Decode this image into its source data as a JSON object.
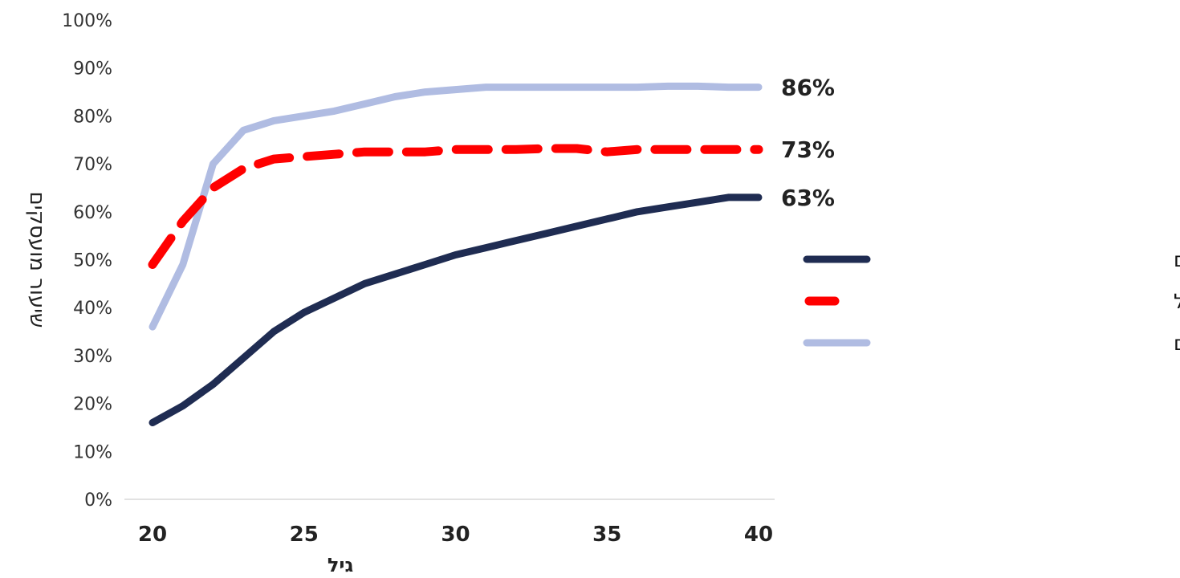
{
  "chart_data": {
    "type": "line",
    "xlabel": "גיל",
    "ylabel": "שיעור מועסקים",
    "xlim": [
      20,
      40
    ],
    "ylim": [
      0,
      100
    ],
    "x_ticks": [
      "20",
      "25",
      "30",
      "35",
      "40"
    ],
    "y_ticks": [
      "0%",
      "10%",
      "20%",
      "30%",
      "40%",
      "50%",
      "60%",
      "70%",
      "80%",
      "90%",
      "100%"
    ],
    "grid": false,
    "legend_position": "right",
    "x": [
      20,
      21,
      22,
      23,
      24,
      25,
      26,
      27,
      28,
      29,
      30,
      31,
      32,
      33,
      34,
      35,
      36,
      37,
      38,
      39,
      40
    ],
    "series": [
      {
        "name": "גברים יהודים שאינם חרדים",
        "color": "#b0bce2",
        "style": "solid",
        "end_label": "86%",
        "values": [
          36,
          49,
          70,
          77,
          79,
          80,
          81,
          82.5,
          84,
          85,
          85.5,
          86,
          86,
          86,
          86,
          86,
          86,
          86.2,
          86.2,
          86,
          86
        ]
      },
      {
        "name": "ללא ישיבה/כולל",
        "color": "#ff0000",
        "style": "dashed",
        "end_label": "73%",
        "values": [
          49,
          58,
          65,
          69,
          71,
          71.5,
          72,
          72.5,
          72.5,
          72.5,
          73,
          73,
          73,
          73.2,
          73.2,
          72.5,
          73,
          73,
          73,
          73,
          73
        ]
      },
      {
        "name": "הממשיכים לישיבות/כוללים",
        "color": "#1f2c52",
        "style": "solid",
        "end_label": "63%",
        "values": [
          16,
          19.5,
          24,
          29.5,
          35,
          39,
          42,
          45,
          47,
          49,
          51,
          52.5,
          54,
          55.5,
          57,
          58.5,
          60,
          61,
          62,
          63,
          63
        ]
      }
    ]
  }
}
